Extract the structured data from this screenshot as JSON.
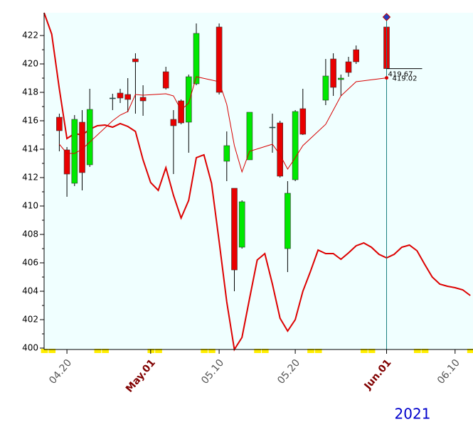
{
  "chart_data": {
    "type": "candlestick",
    "categories": [
      null,
      null,
      null,
      "04.20",
      null,
      null,
      null,
      null,
      null,
      null,
      null,
      null,
      null,
      null,
      "May.01",
      null,
      null,
      null,
      null,
      null,
      null,
      null,
      null,
      "05.10",
      null,
      null,
      null,
      null,
      null,
      null,
      null,
      null,
      null,
      "05.20",
      null,
      null,
      null,
      null,
      null,
      null,
      null,
      null,
      null,
      null,
      null,
      "Jun.01",
      null,
      null,
      null,
      null,
      null,
      null,
      null,
      null,
      "06.10",
      null,
      null
    ],
    "open": [
      null,
      null,
      416.25,
      413.95,
      411.6,
      415.9,
      412.9,
      null,
      null,
      417.55,
      417.95,
      417.85,
      420.35,
      417.65,
      null,
      null,
      419.45,
      416.1,
      417.4,
      415.9,
      418.6,
      null,
      null,
      422.6,
      413.15,
      411.25,
      407.1,
      413.25,
      null,
      null,
      415.5,
      415.85,
      407.0,
      411.85,
      416.85,
      null,
      null,
      417.45,
      420.35,
      418.9,
      420.15,
      421.0,
      null,
      null,
      null,
      422.6,
      null,
      null,
      null,
      null,
      null,
      null,
      null,
      null,
      null,
      null,
      null
    ],
    "high": [
      null,
      null,
      416.5,
      414.15,
      416.4,
      416.75,
      418.25,
      null,
      null,
      417.9,
      418.25,
      419.0,
      420.75,
      418.5,
      null,
      null,
      419.8,
      416.75,
      417.5,
      419.25,
      422.85,
      null,
      null,
      422.85,
      415.25,
      411.25,
      410.4,
      416.6,
      null,
      null,
      416.5,
      416.0,
      411.75,
      416.75,
      418.25,
      null,
      null,
      420.35,
      420.75,
      419.25,
      420.5,
      421.3,
      null,
      null,
      null,
      423.1,
      null,
      null,
      null,
      null,
      null,
      null,
      null,
      null,
      null,
      null,
      null
    ],
    "low": [
      null,
      null,
      413.85,
      410.65,
      411.4,
      411.1,
      412.75,
      null,
      null,
      416.75,
      417.25,
      416.6,
      416.5,
      416.35,
      null,
      null,
      418.2,
      412.25,
      415.75,
      413.75,
      418.5,
      null,
      null,
      417.85,
      411.75,
      404.0,
      407.0,
      413.25,
      null,
      null,
      413.75,
      412.0,
      405.35,
      411.75,
      415.0,
      null,
      null,
      417.1,
      417.75,
      417.75,
      419.1,
      420.0,
      null,
      null,
      null,
      419.6,
      null,
      null,
      null,
      null,
      null,
      null,
      null,
      null,
      null,
      null,
      null
    ],
    "close": [
      null,
      null,
      415.3,
      412.25,
      416.1,
      412.35,
      416.8,
      null,
      null,
      417.6,
      417.6,
      417.5,
      420.15,
      417.4,
      null,
      null,
      418.3,
      415.65,
      415.85,
      419.1,
      422.15,
      null,
      null,
      418.0,
      414.25,
      405.5,
      410.3,
      416.6,
      null,
      null,
      415.55,
      412.1,
      410.9,
      416.65,
      415.05,
      null,
      null,
      419.15,
      418.35,
      419.0,
      419.4,
      420.15,
      null,
      null,
      null,
      419.67,
      null,
      null,
      null,
      null,
      null,
      null,
      null,
      null,
      null,
      null,
      null
    ],
    "up_color": "#00e800",
    "down_color": "#e80000",
    "lines": [
      {
        "color": "#d80000",
        "width": 1,
        "connect_gaps": true,
        "values": [
          null,
          null,
          414.35,
          413.7,
          413.7,
          414.0,
          414.5,
          null,
          null,
          416.0,
          416.4,
          416.65,
          417.85,
          417.8,
          null,
          null,
          417.9,
          417.75,
          416.75,
          417.25,
          419.1,
          null,
          null,
          418.75,
          417.15,
          414.25,
          412.4,
          413.85,
          null,
          null,
          414.35,
          413.6,
          412.6,
          413.4,
          414.25,
          null,
          null,
          415.75,
          416.75,
          417.75,
          418.25,
          418.75,
          null,
          null,
          null,
          419.02,
          null,
          null,
          null,
          null,
          null,
          null,
          null,
          null,
          null,
          null,
          null
        ]
      },
      {
        "color": "#dd0000",
        "width": 2,
        "connect_gaps": false,
        "values": [
          423.6,
          422.1,
          418.25,
          414.75,
          415.1,
          415.0,
          415.4,
          415.65,
          415.7,
          415.55,
          415.8,
          415.6,
          415.25,
          413.25,
          411.65,
          411.1,
          412.7,
          410.75,
          409.15,
          410.4,
          413.4,
          413.6,
          411.6,
          407.5,
          403.25,
          399.9,
          400.75,
          403.5,
          406.2,
          406.65,
          404.5,
          402.1,
          401.2,
          402.0,
          404.0,
          405.4,
          406.9,
          406.65,
          406.65,
          406.25,
          406.7,
          407.2,
          407.4,
          407.1,
          406.6,
          406.35,
          406.6,
          407.1,
          407.25,
          406.85,
          405.9,
          405.0,
          404.5,
          404.35,
          404.25,
          404.1,
          403.7
        ]
      }
    ],
    "ylim": [
      399.9,
      423.6
    ],
    "yticks": [
      400,
      402,
      404,
      406,
      408,
      410,
      412,
      414,
      416,
      418,
      420,
      422
    ],
    "background": "#f0ffff",
    "year_label": "2021"
  }
}
